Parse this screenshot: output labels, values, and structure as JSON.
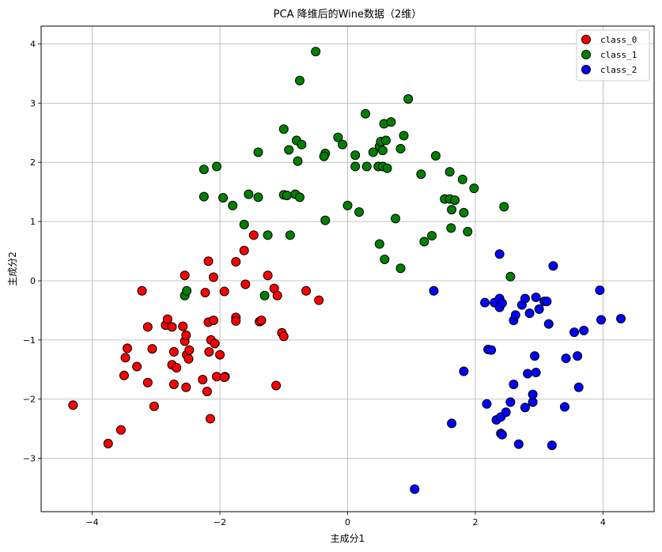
{
  "chart_data": {
    "type": "scatter",
    "title": "PCA 降维后的Wine数据（2维）",
    "xlabel": "主成分1",
    "ylabel": "主成分2",
    "xlim": [
      -4.8,
      4.8
    ],
    "ylim": [
      -3.9,
      4.3
    ],
    "xticks": [
      -4,
      -2,
      0,
      2,
      4
    ],
    "xtick_labels": [
      "−4",
      "−2",
      "0",
      "2",
      "4"
    ],
    "yticks": [
      -3,
      -2,
      -1,
      0,
      1,
      2,
      3,
      4
    ],
    "ytick_labels": [
      "−3",
      "−2",
      "−1",
      "0",
      "1",
      "2",
      "3",
      "4"
    ],
    "grid": true,
    "legend_position": "top-right",
    "series": [
      {
        "name": "class_0",
        "color": "#ff0000",
        "points": [
          [
            -4.3,
            -2.1
          ],
          [
            -3.75,
            -2.75
          ],
          [
            -3.55,
            -2.52
          ],
          [
            -3.5,
            -1.6
          ],
          [
            -3.48,
            -1.3
          ],
          [
            -3.45,
            -1.14
          ],
          [
            -3.3,
            -1.45
          ],
          [
            -3.22,
            -0.17
          ],
          [
            -3.13,
            -0.78
          ],
          [
            -3.13,
            -1.72
          ],
          [
            -3.06,
            -1.15
          ],
          [
            -3.03,
            -2.12
          ],
          [
            -2.85,
            -0.75
          ],
          [
            -2.82,
            -0.65
          ],
          [
            -2.75,
            -0.78
          ],
          [
            -2.75,
            -1.42
          ],
          [
            -2.72,
            -1.2
          ],
          [
            -2.72,
            -1.75
          ],
          [
            -2.68,
            -1.47
          ],
          [
            -2.58,
            -0.77
          ],
          [
            -2.55,
            -1.02
          ],
          [
            -2.53,
            -0.92
          ],
          [
            -2.53,
            -1.8
          ],
          [
            -2.52,
            -1.25
          ],
          [
            -2.49,
            -1.32
          ],
          [
            -2.48,
            -1.17
          ],
          [
            -2.55,
            0.09
          ],
          [
            -2.27,
            -1.67
          ],
          [
            -2.23,
            -0.2
          ],
          [
            -2.2,
            -1.87
          ],
          [
            -2.18,
            0.33
          ],
          [
            -2.18,
            -0.7
          ],
          [
            -2.17,
            -1.2
          ],
          [
            -2.15,
            -2.33
          ],
          [
            -2.14,
            -1.0
          ],
          [
            -2.1,
            -0.67
          ],
          [
            -2.1,
            0.06
          ],
          [
            -2.08,
            -1.06
          ],
          [
            -2.05,
            -1.62
          ],
          [
            -2.0,
            -1.25
          ],
          [
            -1.93,
            -0.18
          ],
          [
            -1.92,
            -1.62
          ],
          [
            -1.93,
            -1.63
          ],
          [
            -1.75,
            0.32
          ],
          [
            -1.75,
            -0.62
          ],
          [
            -1.75,
            -0.68
          ],
          [
            -1.62,
            0.51
          ],
          [
            -1.6,
            -0.06
          ],
          [
            -1.47,
            0.77
          ],
          [
            -1.38,
            -0.69
          ],
          [
            -1.35,
            -0.67
          ],
          [
            -1.25,
            0.09
          ],
          [
            -1.15,
            -0.13
          ],
          [
            -1.12,
            -1.77
          ],
          [
            -1.1,
            -0.25
          ],
          [
            -1.03,
            -0.88
          ],
          [
            -1.0,
            -0.94
          ],
          [
            -0.65,
            -0.17
          ],
          [
            -0.45,
            -0.33
          ]
        ]
      },
      {
        "name": "class_1",
        "color": "#008000",
        "points": [
          [
            -2.25,
            1.88
          ],
          [
            -2.25,
            1.42
          ],
          [
            -2.55,
            -0.25
          ],
          [
            -2.52,
            -0.17
          ],
          [
            -2.05,
            1.93
          ],
          [
            -1.95,
            1.4
          ],
          [
            -1.8,
            1.27
          ],
          [
            -1.62,
            0.95
          ],
          [
            -1.55,
            1.46
          ],
          [
            -1.4,
            2.17
          ],
          [
            -1.4,
            1.41
          ],
          [
            -1.25,
            0.77
          ],
          [
            -1.3,
            -0.25
          ],
          [
            -1.0,
            2.56
          ],
          [
            -1.0,
            1.45
          ],
          [
            -0.95,
            1.44
          ],
          [
            -0.92,
            2.21
          ],
          [
            -0.9,
            0.77
          ],
          [
            -0.8,
            2.37
          ],
          [
            -0.82,
            1.46
          ],
          [
            -0.78,
            2.02
          ],
          [
            -0.75,
            1.41
          ],
          [
            -0.72,
            2.3
          ],
          [
            -0.75,
            3.38
          ],
          [
            -0.5,
            3.87
          ],
          [
            -0.35,
            2.15
          ],
          [
            -0.37,
            2.1
          ],
          [
            -0.35,
            1.02
          ],
          [
            -0.15,
            2.42
          ],
          [
            -0.08,
            2.3
          ],
          [
            0.0,
            1.27
          ],
          [
            0.12,
            1.93
          ],
          [
            0.12,
            2.12
          ],
          [
            0.18,
            1.16
          ],
          [
            0.28,
            2.82
          ],
          [
            0.3,
            1.93
          ],
          [
            0.4,
            2.17
          ],
          [
            0.48,
            1.93
          ],
          [
            0.5,
            2.27
          ],
          [
            0.5,
            0.62
          ],
          [
            0.52,
            2.35
          ],
          [
            0.55,
            2.2
          ],
          [
            0.55,
            1.93
          ],
          [
            0.57,
            2.65
          ],
          [
            0.6,
            2.37
          ],
          [
            0.58,
            0.36
          ],
          [
            0.62,
            1.9
          ],
          [
            0.68,
            2.68
          ],
          [
            0.75,
            1.05
          ],
          [
            0.83,
            2.23
          ],
          [
            0.83,
            0.21
          ],
          [
            0.88,
            2.45
          ],
          [
            0.95,
            3.07
          ],
          [
            1.15,
            1.8
          ],
          [
            1.2,
            0.66
          ],
          [
            1.32,
            0.76
          ],
          [
            1.38,
            2.11
          ],
          [
            1.52,
            1.38
          ],
          [
            1.6,
            1.84
          ],
          [
            1.6,
            1.38
          ],
          [
            1.62,
            0.89
          ],
          [
            1.63,
            1.2
          ],
          [
            1.68,
            1.36
          ],
          [
            1.8,
            1.71
          ],
          [
            1.82,
            1.15
          ],
          [
            1.88,
            0.83
          ],
          [
            1.98,
            1.56
          ],
          [
            2.45,
            1.25
          ],
          [
            2.55,
            0.07
          ]
        ]
      },
      {
        "name": "class_2",
        "color": "#0000ff",
        "points": [
          [
            1.35,
            -0.17
          ],
          [
            1.82,
            -1.53
          ],
          [
            1.63,
            -2.41
          ],
          [
            1.05,
            -3.52
          ],
          [
            2.15,
            -0.37
          ],
          [
            2.18,
            -2.08
          ],
          [
            2.2,
            -1.16
          ],
          [
            2.25,
            -1.17
          ],
          [
            2.3,
            -0.37
          ],
          [
            2.33,
            -2.35
          ],
          [
            2.38,
            -0.3
          ],
          [
            2.38,
            -0.45
          ],
          [
            2.38,
            0.45
          ],
          [
            2.4,
            -2.3
          ],
          [
            2.4,
            -2.58
          ],
          [
            2.42,
            -2.6
          ],
          [
            2.42,
            -0.38
          ],
          [
            2.48,
            -2.22
          ],
          [
            2.55,
            -2.05
          ],
          [
            2.6,
            -1.75
          ],
          [
            2.6,
            -0.67
          ],
          [
            2.63,
            -0.58
          ],
          [
            2.68,
            -2.76
          ],
          [
            2.73,
            -0.41
          ],
          [
            2.78,
            -2.14
          ],
          [
            2.78,
            -0.3
          ],
          [
            2.82,
            -1.57
          ],
          [
            2.85,
            -0.55
          ],
          [
            2.9,
            -2.05
          ],
          [
            2.9,
            -1.92
          ],
          [
            2.93,
            -1.27
          ],
          [
            2.95,
            -0.28
          ],
          [
            2.95,
            -1.55
          ],
          [
            3.0,
            -0.48
          ],
          [
            3.08,
            -0.35
          ],
          [
            3.12,
            -0.35
          ],
          [
            3.15,
            -0.73
          ],
          [
            3.2,
            -2.78
          ],
          [
            3.22,
            0.25
          ],
          [
            3.4,
            -2.13
          ],
          [
            3.42,
            -1.31
          ],
          [
            3.55,
            -0.87
          ],
          [
            3.6,
            -1.27
          ],
          [
            3.62,
            -1.8
          ],
          [
            3.7,
            -0.84
          ],
          [
            3.95,
            -0.16
          ],
          [
            3.97,
            -0.66
          ],
          [
            4.28,
            -0.64
          ]
        ]
      }
    ]
  }
}
